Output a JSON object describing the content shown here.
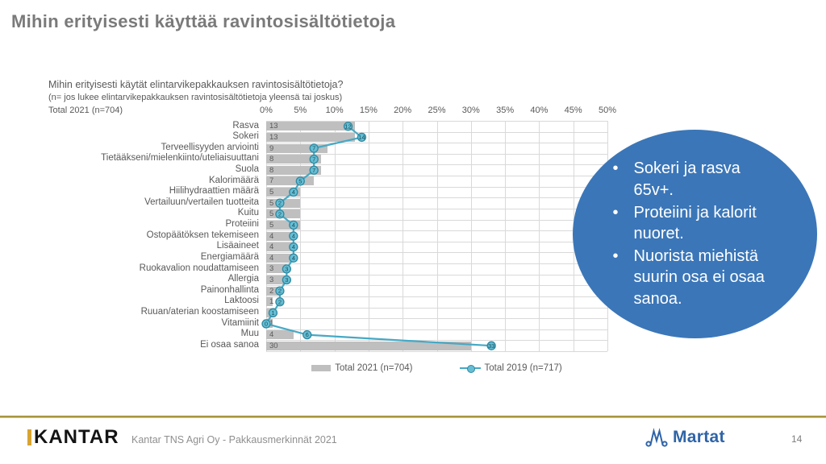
{
  "slide": {
    "title": "Mihin erityisesti käyttää ravintosisältötietoja",
    "page_number": "14"
  },
  "chart_header": {
    "question": "Mihin erityisesti käytät elintarvikepakkauksen ravintosisältötietoja?",
    "note": "(n= jos lukee elintarvikepakkauksen ravintosisältötietoja yleensä tai joskus)",
    "total": "Total 2021 (n=704)"
  },
  "chart_data": {
    "type": "bar",
    "orientation": "horizontal",
    "title": "Mihin erityisesti käytät elintarvikepakkauksen ravintosisältötietoja?",
    "xlabel": "",
    "ylabel": "",
    "xlim": [
      0,
      50
    ],
    "xticks": [
      "0%",
      "5%",
      "10%",
      "15%",
      "20%",
      "25%",
      "30%",
      "35%",
      "40%",
      "45%",
      "50%"
    ],
    "grid": true,
    "legend_position": "bottom",
    "categories": [
      "Rasva",
      "Sokeri",
      "Terveellisyyden arviointi",
      "Tietääkseni/mielenkiinto/uteliaisuuttani",
      "Suola",
      "Kalorimäärä",
      "Hiilihydraattien määrä",
      "Vertailuun/vertailen tuotteita",
      "Kuitu",
      "Proteiini",
      "Ostopäätöksen tekemiseen",
      "Lisäaineet",
      "Energiamäärä",
      "Ruokavalion noudattamiseen",
      "Allergia",
      "Painonhallinta",
      "Laktoosi",
      "Ruuan/aterian koostamiseen",
      "Vitamiinit",
      "Muu",
      "Ei osaa sanoa"
    ],
    "series": [
      {
        "name": "Total 2021 (n=704)",
        "type": "bar",
        "color": "#bfbfbf",
        "values": [
          13,
          13,
          9,
          8,
          8,
          7,
          5,
          5,
          5,
          5,
          4,
          4,
          4,
          3,
          3,
          2,
          1,
          1,
          1,
          4,
          30
        ]
      },
      {
        "name": "Total 2019 (n=717)",
        "type": "line",
        "color": "#45a9c5",
        "values": [
          12,
          14,
          7,
          7,
          7,
          5,
          4,
          2,
          2,
          4,
          4,
          4,
          4,
          3,
          3,
          2,
          2,
          1,
          0,
          6,
          33
        ]
      }
    ]
  },
  "callout": {
    "bullets": [
      "Sokeri ja rasva 65v+.",
      "Proteiini ja kalorit nuoret.",
      "Nuorista miehistä suurin osa ei osaa sanoa."
    ],
    "background": "#3b76b8"
  },
  "footer": {
    "logo": "KANTAR",
    "source": "Kantar TNS Agri Oy - Pakkausmerkinnät 2021",
    "brand": "Martat"
  },
  "colors": {
    "accent_gold": "#c9b44a",
    "bar_gray": "#bfbfbf",
    "line_teal": "#45a9c5",
    "marker_fill": "#67bdd3",
    "marker_stroke": "#2d8aa3",
    "callout_blue": "#3b76b8",
    "martat_blue": "#2f64a7",
    "title_gray": "#7a7a7a"
  }
}
